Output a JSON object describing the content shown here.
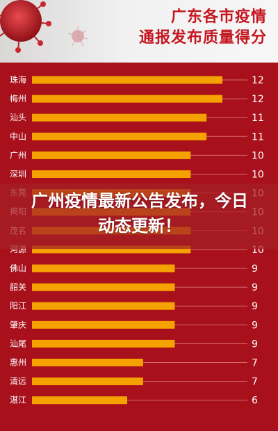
{
  "header": {
    "title_line1": "广东各市疫情",
    "title_line2": "通报发布质量得分"
  },
  "overlay": {
    "headline": "广州疫情最新公告发布，今日动态更新！"
  },
  "colors": {
    "background": "#a8101b",
    "bar": "#f5a200",
    "label": "#ffffff",
    "title": "#c51620"
  },
  "chart_data": {
    "type": "bar",
    "orientation": "horizontal",
    "title": "广东各市疫情通报发布质量得分",
    "xlabel": "",
    "ylabel": "",
    "xlim": [
      0,
      12
    ],
    "grid": false,
    "legend": "none",
    "categories": [
      "珠海",
      "梅州",
      "汕头",
      "中山",
      "广州",
      "深圳",
      "东莞",
      "揭阳",
      "茂名",
      "河源",
      "佛山",
      "韶关",
      "阳江",
      "肇庆",
      "汕尾",
      "惠州",
      "清远",
      "湛江"
    ],
    "values": [
      12,
      12,
      11,
      11,
      10,
      10,
      10,
      10,
      10,
      10,
      9,
      9,
      9,
      9,
      9,
      7,
      7,
      6
    ],
    "value_labels": [
      "12",
      "12",
      "11",
      "11",
      "10",
      "10",
      "10",
      "10",
      "10",
      "10",
      "9",
      "9",
      "9",
      "9",
      "9",
      "7",
      "7",
      "6"
    ]
  }
}
